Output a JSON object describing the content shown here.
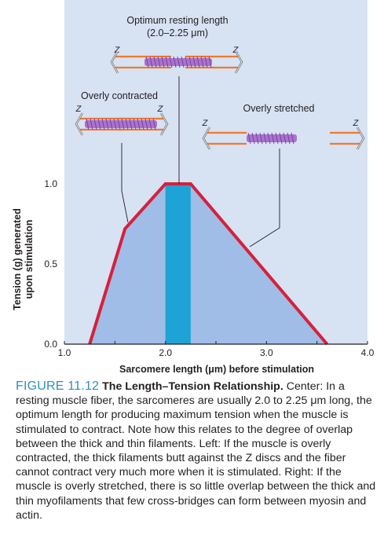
{
  "chart_data": {
    "type": "area",
    "xlabel": "Sarcomere length (μm) before stimulation",
    "ylabel_lines": [
      "Tension (g) generated",
      "upon stimulation"
    ],
    "x_ticks": [
      {
        "value": 1.0,
        "label": "1.0"
      },
      {
        "value": 2.0,
        "label": "2.0"
      },
      {
        "value": 3.0,
        "label": "3.0"
      },
      {
        "value": 4.0,
        "label": "4.0"
      }
    ],
    "y_ticks": [
      {
        "value": 0.0,
        "label": "0.0"
      },
      {
        "value": 0.5,
        "label": "0.5"
      },
      {
        "value": 1.0,
        "label": "1.0"
      }
    ],
    "xlim": [
      1.0,
      4.0
    ],
    "ylim": [
      0.0,
      1.0
    ],
    "curve": {
      "x": [
        1.25,
        1.6,
        2.0,
        2.25,
        3.6,
        3.65
      ],
      "y": [
        0.0,
        0.72,
        1.0,
        1.0,
        0.0,
        0.0
      ]
    },
    "optimum_band": [
      2.0,
      2.25
    ],
    "annotations": {
      "optimum_title": "Optimum resting length",
      "optimum_range": "(2.0–2.25 μm)",
      "contracted": "Overly contracted",
      "stretched": "Overly stretched",
      "z": "Z"
    },
    "colors": {
      "panel_bg": "#d7e2f3",
      "area_fill": "#9fbde6",
      "curve": "#d6203c",
      "band": "#1ea3d6",
      "thin_filament": "#ef7a2d",
      "thick_filament": "#a25fc6"
    }
  },
  "caption": {
    "figure_number": "FIGURE 11.12",
    "title": "The Length–Tension Relationship.",
    "body": "Center: In a resting muscle fiber, the sarcomeres are usually 2.0 to 2.25 μm long, the optimum length for producing maximum tension when the muscle is stimulated to contract. Note how this relates to the degree of overlap between the thick and thin filaments. Left: If the muscle is overly contracted, the thick filaments butt against the Z discs and the fiber cannot contract very much more when it is stimulated. Right: If the muscle is overly stretched, there is so little overlap between the thick and thin myofilaments that few cross-bridges can form between myosin and actin."
  }
}
